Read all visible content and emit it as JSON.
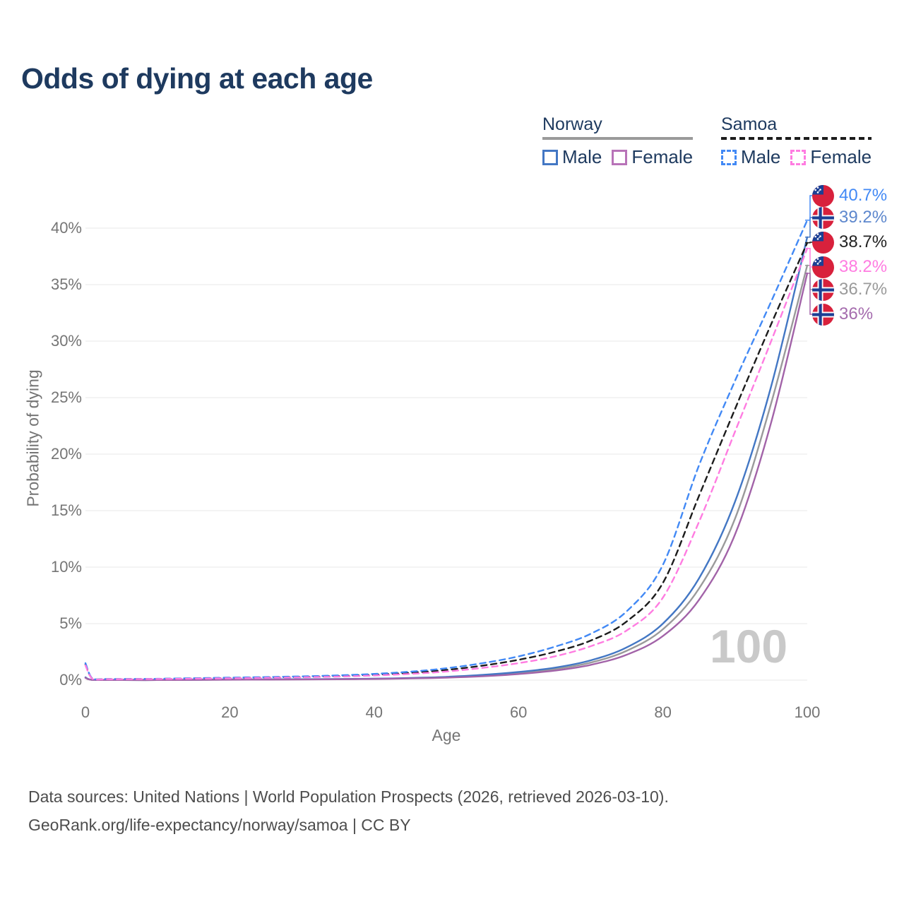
{
  "title": "Odds of dying at each age",
  "colors": {
    "title_text": "#1e3a5f",
    "axis_text": "#757575",
    "gridline": "#ededed",
    "watermark_text": "#c9c9c9",
    "footer_text": "#4d4d4d",
    "norway_male": "#4377c4",
    "norway_female": "#a263a8",
    "norway_total": "#9a9a9a",
    "samoa_male": "#4289f5",
    "samoa_female": "#ff7ce1",
    "samoa_total": "#1c1c1c"
  },
  "legend": {
    "groups": [
      {
        "country": "Norway",
        "line_style": "solid",
        "rule_color": "#9a9a9a",
        "items": [
          {
            "label": "Male",
            "color": "#4377c4"
          },
          {
            "label": "Female",
            "color": "#b873b8"
          }
        ]
      },
      {
        "country": "Samoa",
        "line_style": "dashed",
        "rule_color": "#1c1c1c",
        "items": [
          {
            "label": "Male",
            "color": "#4289f5"
          },
          {
            "label": "Female",
            "color": "#ff7ce1"
          }
        ]
      }
    ]
  },
  "chart_data": {
    "type": "line",
    "title": "Odds of dying at each age",
    "xlabel": "Age",
    "ylabel": "Probability of dying",
    "xlim": [
      0,
      100
    ],
    "ylim_pct": [
      0,
      43
    ],
    "grid": "horizontal",
    "legend_position": "top-right",
    "x_ticks": [
      {
        "v": 0,
        "label": "0"
      },
      {
        "v": 20,
        "label": "20"
      },
      {
        "v": 40,
        "label": "40"
      },
      {
        "v": 60,
        "label": "60"
      },
      {
        "v": 80,
        "label": "80"
      },
      {
        "v": 100,
        "label": "100"
      }
    ],
    "y_ticks": [
      {
        "v": 0,
        "label": "0%"
      },
      {
        "v": 5,
        "label": "5%"
      },
      {
        "v": 10,
        "label": "10%"
      },
      {
        "v": 15,
        "label": "15%"
      },
      {
        "v": 20,
        "label": "20%"
      },
      {
        "v": 25,
        "label": "25%"
      },
      {
        "v": 30,
        "label": "30%"
      },
      {
        "v": 35,
        "label": "35%"
      },
      {
        "v": 40,
        "label": "40%"
      }
    ],
    "series": [
      {
        "id": "norway-total",
        "country": "Norway",
        "sex": "Total",
        "color": "#9a9a9a",
        "dash": "none",
        "end_label": {
          "text": "36.7%",
          "color": "#9a9a9a",
          "flag": "norway",
          "row": 4,
          "value_pct": 36.7
        },
        "points": [
          [
            0,
            0.22
          ],
          [
            1,
            0.02
          ],
          [
            5,
            0.01
          ],
          [
            10,
            0.01
          ],
          [
            15,
            0.025
          ],
          [
            20,
            0.05
          ],
          [
            25,
            0.06
          ],
          [
            30,
            0.07
          ],
          [
            35,
            0.09
          ],
          [
            40,
            0.12
          ],
          [
            45,
            0.17
          ],
          [
            50,
            0.26
          ],
          [
            55,
            0.4
          ],
          [
            60,
            0.63
          ],
          [
            65,
            0.97
          ],
          [
            70,
            1.55
          ],
          [
            75,
            2.6
          ],
          [
            80,
            4.5
          ],
          [
            85,
            8.1
          ],
          [
            90,
            14.3
          ],
          [
            95,
            24.5
          ],
          [
            100,
            36.7
          ]
        ]
      },
      {
        "id": "norway-male",
        "country": "Norway",
        "sex": "Male",
        "color": "#4377c4",
        "dash": "none",
        "end_label": {
          "text": "39.2%",
          "color": "#5d87cd",
          "flag": "norway",
          "row": 1,
          "value_pct": 39.2
        },
        "points": [
          [
            0,
            0.25
          ],
          [
            1,
            0.02
          ],
          [
            5,
            0.01
          ],
          [
            10,
            0.01
          ],
          [
            15,
            0.03
          ],
          [
            20,
            0.06
          ],
          [
            25,
            0.07
          ],
          [
            30,
            0.08
          ],
          [
            35,
            0.1
          ],
          [
            40,
            0.13
          ],
          [
            45,
            0.19
          ],
          [
            50,
            0.29
          ],
          [
            55,
            0.46
          ],
          [
            60,
            0.72
          ],
          [
            65,
            1.1
          ],
          [
            70,
            1.75
          ],
          [
            75,
            2.9
          ],
          [
            80,
            5.0
          ],
          [
            85,
            9.0
          ],
          [
            90,
            15.8
          ],
          [
            95,
            26.0
          ],
          [
            100,
            39.2
          ]
        ]
      },
      {
        "id": "norway-female",
        "country": "Norway",
        "sex": "Female",
        "color": "#a263a8",
        "dash": "none",
        "end_label": {
          "text": "36%",
          "color": "#a56cae",
          "flag": "norway",
          "row": 5,
          "value_pct": 36.0
        },
        "points": [
          [
            0,
            0.2
          ],
          [
            1,
            0.02
          ],
          [
            5,
            0.01
          ],
          [
            10,
            0.01
          ],
          [
            15,
            0.02
          ],
          [
            20,
            0.035
          ],
          [
            25,
            0.045
          ],
          [
            30,
            0.055
          ],
          [
            35,
            0.075
          ],
          [
            40,
            0.1
          ],
          [
            45,
            0.15
          ],
          [
            50,
            0.22
          ],
          [
            55,
            0.34
          ],
          [
            60,
            0.54
          ],
          [
            65,
            0.84
          ],
          [
            70,
            1.35
          ],
          [
            75,
            2.25
          ],
          [
            80,
            3.9
          ],
          [
            85,
            7.1
          ],
          [
            90,
            12.9
          ],
          [
            95,
            22.8
          ],
          [
            100,
            36.0
          ]
        ]
      },
      {
        "id": "samoa-total",
        "country": "Samoa",
        "sex": "Total",
        "color": "#1c1c1c",
        "dash": "8 6",
        "end_label": {
          "text": "38.7%",
          "color": "#222222",
          "flag": "samoa",
          "row": 2,
          "value_pct": 38.7
        },
        "points": [
          [
            0,
            1.4
          ],
          [
            1,
            0.11
          ],
          [
            3,
            0.09
          ],
          [
            5,
            0.09
          ],
          [
            10,
            0.11
          ],
          [
            15,
            0.15
          ],
          [
            20,
            0.19
          ],
          [
            25,
            0.24
          ],
          [
            30,
            0.29
          ],
          [
            35,
            0.37
          ],
          [
            40,
            0.48
          ],
          [
            45,
            0.65
          ],
          [
            50,
            0.9
          ],
          [
            55,
            1.28
          ],
          [
            60,
            1.8
          ],
          [
            65,
            2.5
          ],
          [
            70,
            3.5
          ],
          [
            75,
            5.2
          ],
          [
            80,
            8.6
          ],
          [
            85,
            16.3
          ],
          [
            90,
            24.0
          ],
          [
            95,
            31.5
          ],
          [
            100,
            38.7
          ]
        ]
      },
      {
        "id": "samoa-male",
        "country": "Samoa",
        "sex": "Male",
        "color": "#4289f5",
        "dash": "8 6",
        "end_label": {
          "text": "40.7%",
          "color": "#4289f5",
          "flag": "samoa",
          "row": 0,
          "value_pct": 40.7
        },
        "points": [
          [
            0,
            1.5
          ],
          [
            1,
            0.12
          ],
          [
            3,
            0.1
          ],
          [
            5,
            0.1
          ],
          [
            10,
            0.12
          ],
          [
            15,
            0.17
          ],
          [
            20,
            0.22
          ],
          [
            25,
            0.27
          ],
          [
            30,
            0.33
          ],
          [
            35,
            0.42
          ],
          [
            40,
            0.55
          ],
          [
            45,
            0.75
          ],
          [
            50,
            1.05
          ],
          [
            55,
            1.5
          ],
          [
            60,
            2.1
          ],
          [
            65,
            2.95
          ],
          [
            70,
            4.1
          ],
          [
            75,
            6.1
          ],
          [
            80,
            10.2
          ],
          [
            85,
            19.0
          ],
          [
            90,
            26.5
          ],
          [
            95,
            33.5
          ],
          [
            100,
            40.7
          ]
        ]
      },
      {
        "id": "samoa-female",
        "country": "Samoa",
        "sex": "Female",
        "color": "#ff7ce1",
        "dash": "8 6",
        "end_label": {
          "text": "38.2%",
          "color": "#ff7ce1",
          "flag": "samoa",
          "row": 3,
          "value_pct": 38.2
        },
        "points": [
          [
            0,
            1.3
          ],
          [
            1,
            0.1
          ],
          [
            3,
            0.08
          ],
          [
            5,
            0.08
          ],
          [
            10,
            0.1
          ],
          [
            15,
            0.13
          ],
          [
            20,
            0.16
          ],
          [
            25,
            0.2
          ],
          [
            30,
            0.25
          ],
          [
            35,
            0.31
          ],
          [
            40,
            0.41
          ],
          [
            45,
            0.55
          ],
          [
            50,
            0.76
          ],
          [
            55,
            1.08
          ],
          [
            60,
            1.5
          ],
          [
            65,
            2.1
          ],
          [
            70,
            3.0
          ],
          [
            75,
            4.4
          ],
          [
            80,
            7.3
          ],
          [
            85,
            14.0
          ],
          [
            90,
            22.0
          ],
          [
            95,
            30.0
          ],
          [
            100,
            38.2
          ]
        ]
      }
    ]
  },
  "watermark": "100",
  "footer": {
    "line1": "Data sources: United Nations | World Population Prospects (2026, retrieved 2026-03-10).",
    "line2": "GeoRank.org/life-expectancy/norway/samoa | CC BY"
  }
}
